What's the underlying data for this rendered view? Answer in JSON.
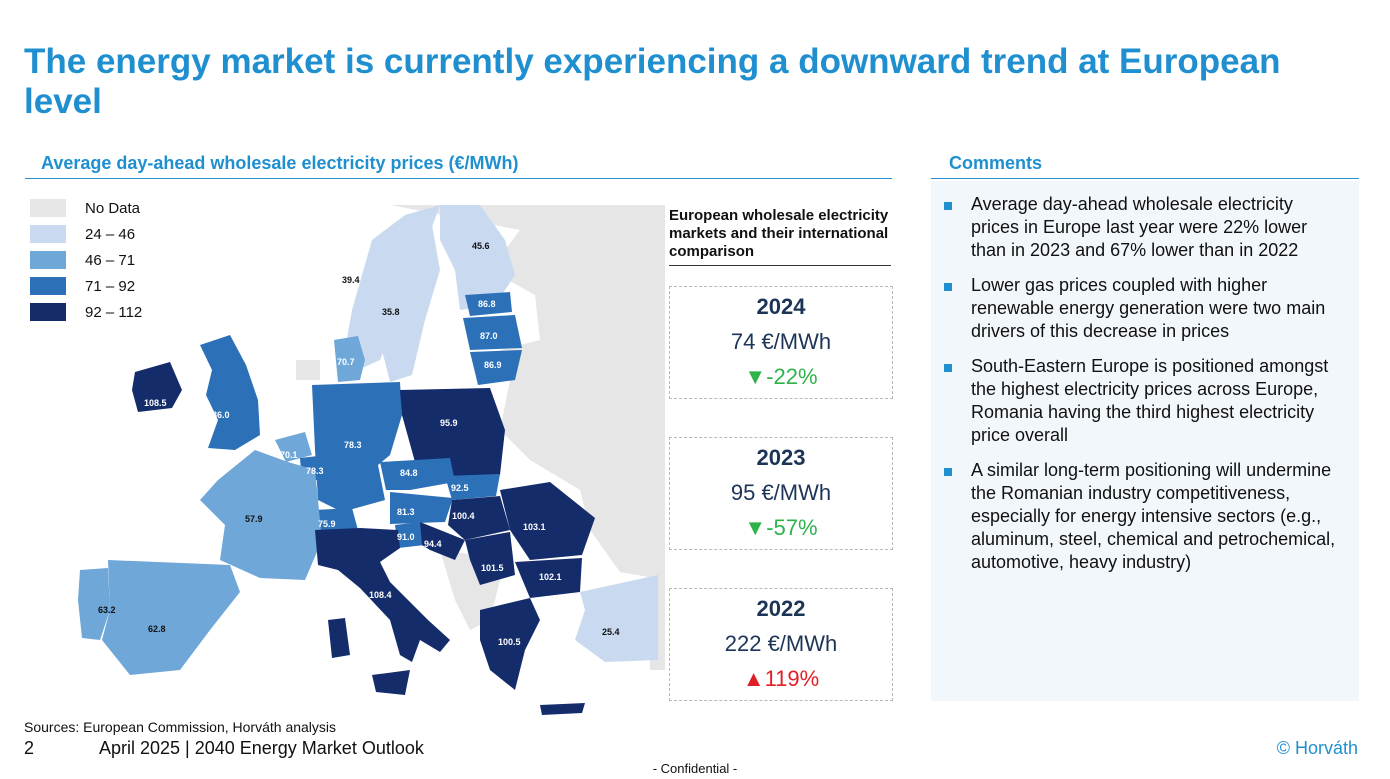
{
  "title": "The energy market is currently experiencing a downward trend at European level",
  "left_section": {
    "heading": "Average day-ahead wholesale electricity prices (€/MWh)"
  },
  "right_section": {
    "heading": "Comments"
  },
  "legend": [
    {
      "label": "No Data",
      "color": "#e6e6e6"
    },
    {
      "label": "24 – 46",
      "color": "#c9daf0"
    },
    {
      "label": "46 – 71",
      "color": "#6ea7d8"
    },
    {
      "label": "71 – 92",
      "color": "#2c71b8"
    },
    {
      "label": "92 – 112",
      "color": "#152c6b"
    }
  ],
  "map_values": {
    "ireland": "108.5",
    "uk": "86.0",
    "norway_south": "39.4",
    "sweden_south": "35.8",
    "finland": "45.6",
    "estonia": "86.8",
    "latvia": "87.0",
    "lithuania": "86.9",
    "denmark": "70.7",
    "belgium": "70.1",
    "luxembourg": "78.3",
    "germany": "78.3",
    "poland": "95.9",
    "czechia": "84.8",
    "slovakia": "92.5",
    "austria": "81.3",
    "hungary": "100.4",
    "romania": "103.1",
    "switzerland": "75.9",
    "slovenia": "91.0",
    "croatia": "94.4",
    "serbia": "101.5",
    "bulgaria": "102.1",
    "france": "57.9",
    "portugal": "63.2",
    "spain": "62.8",
    "italy": "108.4",
    "greece": "100.5",
    "turkey": "25.4"
  },
  "comparison": {
    "title": "European wholesale electricity markets and their international comparison",
    "cards": [
      {
        "year": "2024",
        "price": "74 €/MWh",
        "arrow": "▼",
        "change": "-22%",
        "direction": "down"
      },
      {
        "year": "2023",
        "price": "95 €/MWh",
        "arrow": "▼",
        "change": "-57%",
        "direction": "down"
      },
      {
        "year": "2022",
        "price": "222 €/MWh",
        "arrow": "▲",
        "change": "119%",
        "direction": "up"
      }
    ]
  },
  "comments": [
    "Average day-ahead wholesale electricity prices in Europe last year were 22% lower than in 2023 and 67% lower than in 2022",
    "Lower gas prices coupled with higher renewable energy generation were two main drivers of this decrease in prices",
    "South-Eastern Europe is positioned amongst the highest electricity prices across Europe, Romania having the third highest electricity price overall",
    "A similar long-term positioning will undermine the Romanian industry competitiveness, especially for energy intensive sectors (e.g., aluminum, steel, chemical and petrochemical, automotive, heavy industry)"
  ],
  "footer": {
    "sources": "Sources: European Commission, Horváth analysis",
    "page_number": "2",
    "text": "April 2025 | 2040 Energy Market Outlook",
    "copyright": "© Horváth",
    "confidential": "- Confidential -"
  }
}
